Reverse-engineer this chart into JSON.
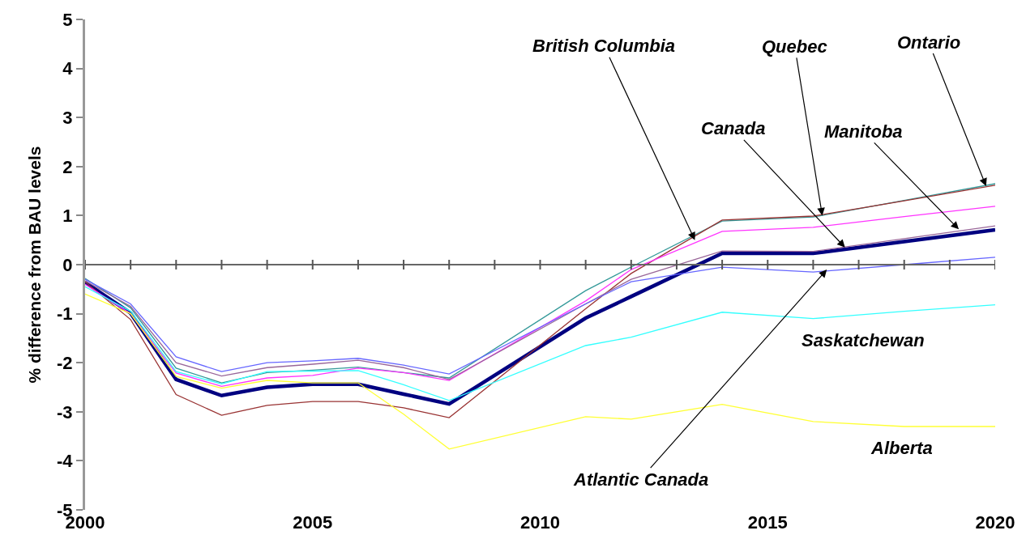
{
  "chart_data": {
    "type": "line",
    "ylabel": "% difference from BAU levels",
    "x": [
      2000,
      2001,
      2002,
      2003,
      2004,
      2005,
      2006,
      2007,
      2008,
      2011,
      2012,
      2014,
      2016,
      2018,
      2020
    ],
    "series": [
      {
        "color": "#000080",
        "values": [
          -0.36,
          -0.99,
          -2.34,
          -2.67,
          -2.5,
          -2.44,
          -2.44,
          -2.64,
          -2.84,
          -1.09,
          -0.65,
          0.23,
          0.23,
          0.47,
          0.71
        ]
      },
      {
        "color": "#339999",
        "values": [
          -0.28,
          -0.88,
          -2.11,
          -2.41,
          -2.2,
          -2.15,
          -2.09,
          -2.2,
          -2.31,
          -0.53,
          -0.05,
          0.89,
          0.97,
          1.31,
          1.65
        ]
      },
      {
        "color": "#993333",
        "values": [
          -0.35,
          -1.12,
          -2.65,
          -3.07,
          -2.87,
          -2.79,
          -2.79,
          -2.92,
          -3.12,
          -0.9,
          -0.18,
          0.91,
          0.99,
          1.3,
          1.62
        ]
      },
      {
        "color": "#ff33ff",
        "values": [
          -0.4,
          -1.0,
          -2.21,
          -2.48,
          -2.31,
          -2.26,
          -2.11,
          -2.2,
          -2.36,
          -0.74,
          -0.1,
          0.68,
          0.76,
          0.98,
          1.19
        ]
      },
      {
        "color": "#996699",
        "values": [
          -0.33,
          -0.85,
          -2.0,
          -2.27,
          -2.1,
          -2.03,
          -1.95,
          -2.1,
          -2.34,
          -0.8,
          -0.3,
          0.28,
          0.27,
          0.53,
          0.79
        ]
      },
      {
        "color": "#6666ff",
        "values": [
          -0.3,
          -0.8,
          -1.88,
          -2.18,
          -2.0,
          -1.96,
          -1.91,
          -2.05,
          -2.23,
          -0.8,
          -0.35,
          -0.05,
          -0.15,
          0.0,
          0.15
        ]
      },
      {
        "color": "#33ffff",
        "values": [
          -0.45,
          -0.95,
          -2.18,
          -2.43,
          -2.18,
          -2.17,
          -2.16,
          -2.45,
          -2.77,
          -1.65,
          -1.48,
          -0.97,
          -1.1,
          -0.95,
          -0.82
        ]
      },
      {
        "color": "#ffff33",
        "values": [
          -0.6,
          -1.0,
          -2.28,
          -2.52,
          -2.36,
          -2.41,
          -2.41,
          -3.05,
          -3.76,
          -3.1,
          -3.15,
          -2.85,
          -3.2,
          -3.3,
          -3.3
        ]
      }
    ],
    "annotations": [
      {
        "text": "British Columbia",
        "x": 2013.4,
        "y": 0.5
      },
      {
        "text": "Quebec",
        "x": 2016.2,
        "y": 1.0
      },
      {
        "text": "Ontario",
        "x": 2019.8,
        "y": 1.6
      },
      {
        "text": "Canada",
        "x": 2016.7,
        "y": 0.35
      },
      {
        "text": "Manitoba",
        "x": 2019.2,
        "y": 0.72
      },
      {
        "text": "Atlantic Canada",
        "x": 2016.3,
        "y": -0.1
      },
      "Saskatchewan",
      "Alberta"
    ],
    "xlim": [
      2000,
      2020
    ],
    "xticks": [
      2000,
      {
        "value": 2001,
        "label": null
      },
      {
        "value": 2002,
        "label": null
      },
      {
        "value": 2003,
        "label": null
      },
      {
        "value": 2004,
        "label": null
      },
      2005,
      {
        "value": 2006,
        "label": null
      },
      {
        "value": 2007,
        "label": null
      },
      {
        "value": 2008,
        "label": null
      },
      {
        "value": 2009,
        "label": null
      },
      2010,
      {
        "value": 2011,
        "label": null
      },
      {
        "value": 2012,
        "label": null
      },
      {
        "value": 2013,
        "label": null
      },
      {
        "value": 2014,
        "label": null
      },
      2015,
      {
        "value": 2016,
        "label": null
      },
      {
        "value": 2017,
        "label": null
      },
      {
        "value": 2018,
        "label": null
      },
      {
        "value": 2019,
        "label": null
      },
      2020
    ],
    "ylim": [
      -5,
      5
    ],
    "yticks": [
      -5,
      -4,
      -3,
      -2,
      -1,
      0,
      1,
      2,
      3,
      4,
      5
    ],
    "ref_lines": [
      {
        "axis": "y",
        "value": 0,
        "color": "#666666",
        "line_style": "solid"
      }
    ],
    "grid": false,
    "marker": "none",
    "line_style": "solid"
  }
}
